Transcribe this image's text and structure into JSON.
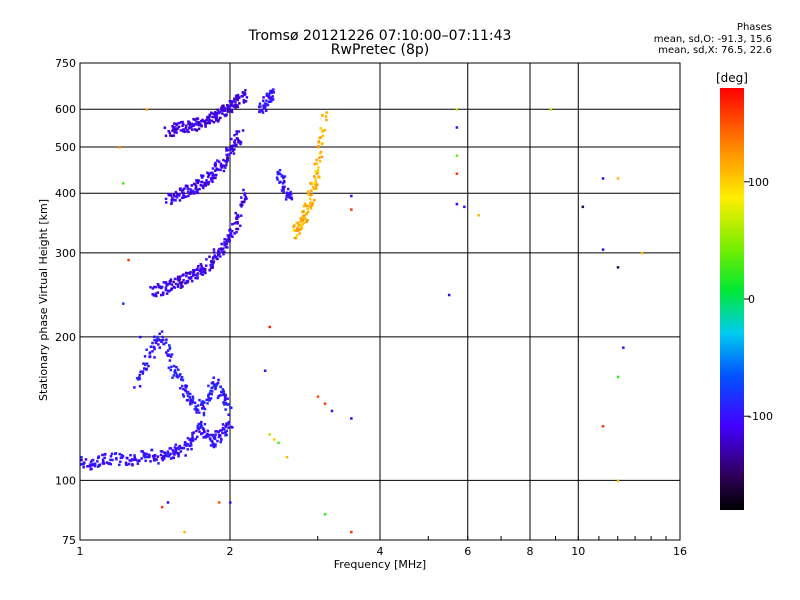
{
  "header": {
    "title": "Tromsø 20121226 07:10:00–07:11:43",
    "subtitle": "RwPretec (8p)"
  },
  "phase_info": {
    "title": "Phases",
    "line1": "mean, sd,O: -91.3, 15.6",
    "line2": "mean, sd,X: 76.5, 22.6"
  },
  "colorbar": {
    "label": "[deg]",
    "ticks": [
      "100",
      "0",
      "-100"
    ],
    "tick_values": [
      100,
      0,
      -100
    ],
    "range": [
      -180,
      180
    ]
  },
  "chart_data": {
    "type": "scatter",
    "xlabel": "Frequency [MHz]",
    "ylabel": "Stationary phase Virtual Height [km]",
    "x_scale": "log",
    "y_scale": "log",
    "xlim": [
      1,
      16
    ],
    "ylim": [
      75,
      750
    ],
    "x_ticks": [
      1,
      2,
      4,
      6,
      8,
      10,
      16
    ],
    "x_tick_labels": [
      "1",
      "2",
      "4",
      "6",
      "8",
      "10",
      "16"
    ],
    "y_ticks": [
      75,
      100,
      200,
      300,
      400,
      500,
      600,
      750
    ],
    "y_tick_labels": [
      "75",
      "100",
      "200",
      "300",
      "400",
      "500",
      "600",
      "750"
    ],
    "grid": true,
    "traces": [
      {
        "x": [
          1.0,
          1.04,
          1.08,
          1.12,
          1.18,
          1.25,
          1.32,
          1.38,
          1.45,
          1.5,
          1.55,
          1.6,
          1.65,
          1.7,
          1.75,
          1.8,
          1.85,
          1.9,
          1.95,
          2.0
        ],
        "y": [
          110,
          108,
          109,
          112,
          111,
          110,
          112,
          113,
          112,
          114,
          115,
          116,
          120,
          125,
          130,
          125,
          120,
          125,
          128,
          130
        ],
        "phase": -100
      },
      {
        "x": [
          1.4,
          1.45,
          1.5,
          1.55,
          1.6,
          1.65,
          1.7,
          1.75,
          1.8,
          1.85,
          1.9,
          1.95,
          2.0,
          2.05,
          2.1,
          2.15
        ],
        "y": [
          248,
          252,
          255,
          258,
          262,
          266,
          270,
          276,
          283,
          290,
          300,
          312,
          325,
          345,
          370,
          400
        ],
        "phase": -110
      },
      {
        "x": [
          1.5,
          1.55,
          1.6,
          1.65,
          1.7,
          1.75,
          1.8,
          1.85,
          1.9,
          1.95,
          2.0,
          2.05,
          2.1
        ],
        "y": [
          390,
          395,
          400,
          405,
          412,
          420,
          430,
          440,
          455,
          470,
          490,
          510,
          530
        ],
        "phase": -110
      },
      {
        "x": [
          1.5,
          1.55,
          1.6,
          1.65,
          1.7,
          1.75,
          1.8,
          1.85,
          1.9,
          1.95,
          2.0,
          2.05,
          2.1,
          2.15
        ],
        "y": [
          540,
          545,
          548,
          552,
          556,
          560,
          565,
          575,
          585,
          595,
          610,
          620,
          630,
          640
        ],
        "phase": -115
      },
      {
        "x": [
          2.3,
          2.35,
          2.4,
          2.45
        ],
        "y": [
          600,
          620,
          635,
          645
        ],
        "phase": -100
      },
      {
        "x": [
          2.5,
          2.55,
          2.6,
          2.65
        ],
        "y": [
          440,
          420,
          400,
          390
        ],
        "phase": -100
      },
      {
        "x": [
          1.3,
          1.35,
          1.4,
          1.45,
          1.5,
          1.55,
          1.6,
          1.65,
          1.7,
          1.75,
          1.8,
          1.85,
          1.9,
          1.95,
          2.0
        ],
        "y": [
          160,
          175,
          190,
          200,
          185,
          170,
          160,
          150,
          145,
          140,
          150,
          160,
          155,
          150,
          140
        ],
        "phase": -95
      },
      {
        "x": [
          2.7,
          2.75,
          2.8,
          2.85,
          2.9,
          2.95,
          3.0,
          3.05,
          3.1
        ],
        "y": [
          330,
          340,
          350,
          370,
          390,
          420,
          460,
          520,
          600
        ],
        "phase": 110
      }
    ],
    "points": [
      {
        "x": 1.36,
        "y": 600,
        "phase": 120
      },
      {
        "x": 1.2,
        "y": 500,
        "phase": 130
      },
      {
        "x": 1.22,
        "y": 420,
        "phase": 30
      },
      {
        "x": 1.25,
        "y": 290,
        "phase": 160
      },
      {
        "x": 1.22,
        "y": 235,
        "phase": -80
      },
      {
        "x": 1.32,
        "y": 200,
        "phase": -110
      },
      {
        "x": 1.5,
        "y": 90,
        "phase": -110
      },
      {
        "x": 1.46,
        "y": 88,
        "phase": 160
      },
      {
        "x": 1.9,
        "y": 90,
        "phase": 150
      },
      {
        "x": 2.0,
        "y": 90,
        "phase": -100
      },
      {
        "x": 1.62,
        "y": 78,
        "phase": 110
      },
      {
        "x": 2.4,
        "y": 210,
        "phase": 170
      },
      {
        "x": 2.35,
        "y": 170,
        "phase": -100
      },
      {
        "x": 2.4,
        "y": 125,
        "phase": 60
      },
      {
        "x": 2.45,
        "y": 122,
        "phase": 100
      },
      {
        "x": 2.5,
        "y": 120,
        "phase": 30
      },
      {
        "x": 2.6,
        "y": 112,
        "phase": 110
      },
      {
        "x": 3.0,
        "y": 150,
        "phase": 150
      },
      {
        "x": 3.1,
        "y": 145,
        "phase": 160
      },
      {
        "x": 3.2,
        "y": 140,
        "phase": -110
      },
      {
        "x": 3.5,
        "y": 135,
        "phase": -110
      },
      {
        "x": 3.5,
        "y": 370,
        "phase": 160
      },
      {
        "x": 3.5,
        "y": 395,
        "phase": -110
      },
      {
        "x": 3.1,
        "y": 85,
        "phase": 20
      },
      {
        "x": 3.5,
        "y": 78,
        "phase": 160
      },
      {
        "x": 5.5,
        "y": 245,
        "phase": -110
      },
      {
        "x": 5.7,
        "y": 380,
        "phase": -110
      },
      {
        "x": 5.9,
        "y": 375,
        "phase": -110
      },
      {
        "x": 5.7,
        "y": 440,
        "phase": 160
      },
      {
        "x": 5.7,
        "y": 480,
        "phase": 40
      },
      {
        "x": 5.7,
        "y": 550,
        "phase": -110
      },
      {
        "x": 5.7,
        "y": 600,
        "phase": 60
      },
      {
        "x": 6.3,
        "y": 360,
        "phase": 110
      },
      {
        "x": 8.8,
        "y": 600,
        "phase": 60
      },
      {
        "x": 10.2,
        "y": 375,
        "phase": -150
      },
      {
        "x": 11.2,
        "y": 430,
        "phase": -110
      },
      {
        "x": 11.2,
        "y": 305,
        "phase": -110
      },
      {
        "x": 11.2,
        "y": 130,
        "phase": 160
      },
      {
        "x": 12.0,
        "y": 280,
        "phase": -150
      },
      {
        "x": 12.0,
        "y": 430,
        "phase": 110
      },
      {
        "x": 12.0,
        "y": 165,
        "phase": 20
      },
      {
        "x": 12.0,
        "y": 100,
        "phase": 110
      },
      {
        "x": 12.3,
        "y": 190,
        "phase": -100
      },
      {
        "x": 13.4,
        "y": 300,
        "phase": 110
      }
    ]
  }
}
